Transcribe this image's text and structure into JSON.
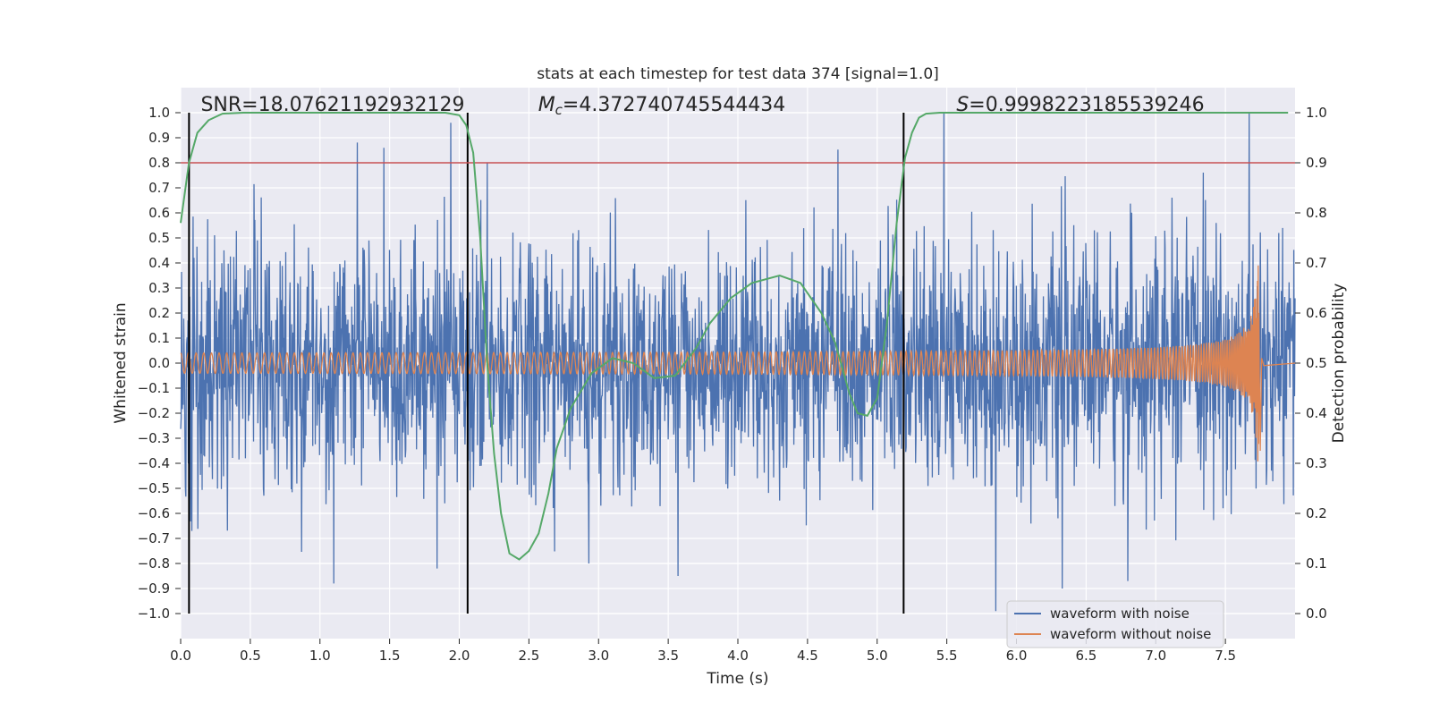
{
  "chart_data": {
    "type": "line",
    "title": "stats at each timestep for test data 374 [signal=1.0]",
    "xlabel": "Time (s)",
    "ylabel": "Whitened strain",
    "y2label": "Detection probability",
    "xlim": [
      0.0,
      8.0
    ],
    "ylim": [
      -1.1,
      1.1
    ],
    "y2lim": [
      -0.05,
      1.05
    ],
    "xticks": [
      0.0,
      0.5,
      1.0,
      1.5,
      2.0,
      2.5,
      3.0,
      3.5,
      4.0,
      4.5,
      5.0,
      5.5,
      6.0,
      6.5,
      7.0,
      7.5
    ],
    "xtick_labels": [
      "0.0",
      "0.5",
      "1.0",
      "1.5",
      "2.0",
      "2.5",
      "3.0",
      "3.5",
      "4.0",
      "4.5",
      "5.0",
      "5.5",
      "6.0",
      "6.5",
      "7.0",
      "7.5"
    ],
    "yticks": [
      -1.0,
      -0.9,
      -0.8,
      -0.7,
      -0.6,
      -0.5,
      -0.4,
      -0.3,
      -0.2,
      -0.1,
      0.0,
      0.1,
      0.2,
      0.3,
      0.4,
      0.5,
      0.6,
      0.7,
      0.8,
      0.9,
      1.0
    ],
    "ytick_labels": [
      "−1.0",
      "−0.9",
      "−0.8",
      "−0.7",
      "−0.6",
      "−0.5",
      "−0.4",
      "−0.3",
      "−0.2",
      "−0.1",
      "0.0",
      "0.1",
      "0.2",
      "0.3",
      "0.4",
      "0.5",
      "0.6",
      "0.7",
      "0.8",
      "0.9",
      "1.0"
    ],
    "y2ticks": [
      0.0,
      0.1,
      0.2,
      0.3,
      0.4,
      0.5,
      0.6,
      0.7,
      0.8,
      0.9,
      1.0
    ],
    "y2tick_labels": [
      "0.0",
      "0.1",
      "0.2",
      "0.3",
      "0.4",
      "0.5",
      "0.6",
      "0.7",
      "0.8",
      "0.9",
      "1.0"
    ],
    "grid": true,
    "legend_position": "bottom-right",
    "annotations": {
      "snr": "SNR=18.07621192932129",
      "mc_symbol": "M",
      "mc_subscript": "c",
      "mc_value": "=4.372740745544434",
      "s_symbol": "S",
      "s_value": "=0.9998223185539246"
    },
    "threshold": {
      "value": 0.9,
      "axis": "y2",
      "color": "#c44e52"
    },
    "vertical_markers": [
      0.06,
      2.06,
      5.19
    ],
    "series": [
      {
        "name": "waveform with noise",
        "color": "#4c72b0",
        "axis": "y",
        "kind": "noise",
        "x_range": [
          0.0,
          8.0
        ],
        "typical_amplitude": 0.3,
        "peak_values": [
          {
            "x": 0.08,
            "y": -0.67
          },
          {
            "x": 1.1,
            "y": -0.88
          },
          {
            "x": 1.46,
            "y": 0.86
          },
          {
            "x": 1.84,
            "y": -0.82
          },
          {
            "x": 1.94,
            "y": 0.96
          },
          {
            "x": 2.2,
            "y": 0.8
          },
          {
            "x": 2.93,
            "y": -0.8
          },
          {
            "x": 3.57,
            "y": -0.85
          },
          {
            "x": 5.48,
            "y": 1.0
          },
          {
            "x": 5.85,
            "y": -0.99
          },
          {
            "x": 6.33,
            "y": -0.9
          },
          {
            "x": 6.8,
            "y": -0.87
          },
          {
            "x": 7.67,
            "y": 1.0
          }
        ]
      },
      {
        "name": "waveform without noise",
        "color": "#dd8452",
        "axis": "y",
        "kind": "chirp",
        "start_amplitude": 0.035,
        "peak_amplitude": 0.4,
        "merger_time": 7.75,
        "ringdown_min": -0.35
      },
      {
        "name": "detection probability",
        "color": "#55a868",
        "axis": "y2",
        "kind": "line",
        "x": [
          0.0,
          0.06,
          0.12,
          0.2,
          0.3,
          0.45,
          0.7,
          1.5,
          1.9,
          2.0,
          2.05,
          2.1,
          2.15,
          2.2,
          2.25,
          2.3,
          2.36,
          2.43,
          2.5,
          2.57,
          2.64,
          2.7,
          2.8,
          2.95,
          3.1,
          3.25,
          3.4,
          3.55,
          3.7,
          3.8,
          3.95,
          4.1,
          4.3,
          4.45,
          4.6,
          4.7,
          4.8,
          4.86,
          4.93,
          5.0,
          5.07,
          5.14,
          5.2,
          5.25,
          5.3,
          5.35,
          5.45,
          6.0,
          7.0,
          7.95
        ],
        "y": [
          0.78,
          0.9,
          0.96,
          0.985,
          0.998,
          1.0,
          1.0,
          1.0,
          1.0,
          0.995,
          0.975,
          0.92,
          0.75,
          0.5,
          0.32,
          0.2,
          0.12,
          0.108,
          0.125,
          0.16,
          0.24,
          0.33,
          0.41,
          0.48,
          0.51,
          0.5,
          0.47,
          0.475,
          0.53,
          0.58,
          0.63,
          0.66,
          0.675,
          0.66,
          0.6,
          0.54,
          0.44,
          0.4,
          0.395,
          0.43,
          0.58,
          0.78,
          0.91,
          0.96,
          0.99,
          0.998,
          1.0,
          1.0,
          1.0,
          1.0
        ]
      }
    ]
  }
}
